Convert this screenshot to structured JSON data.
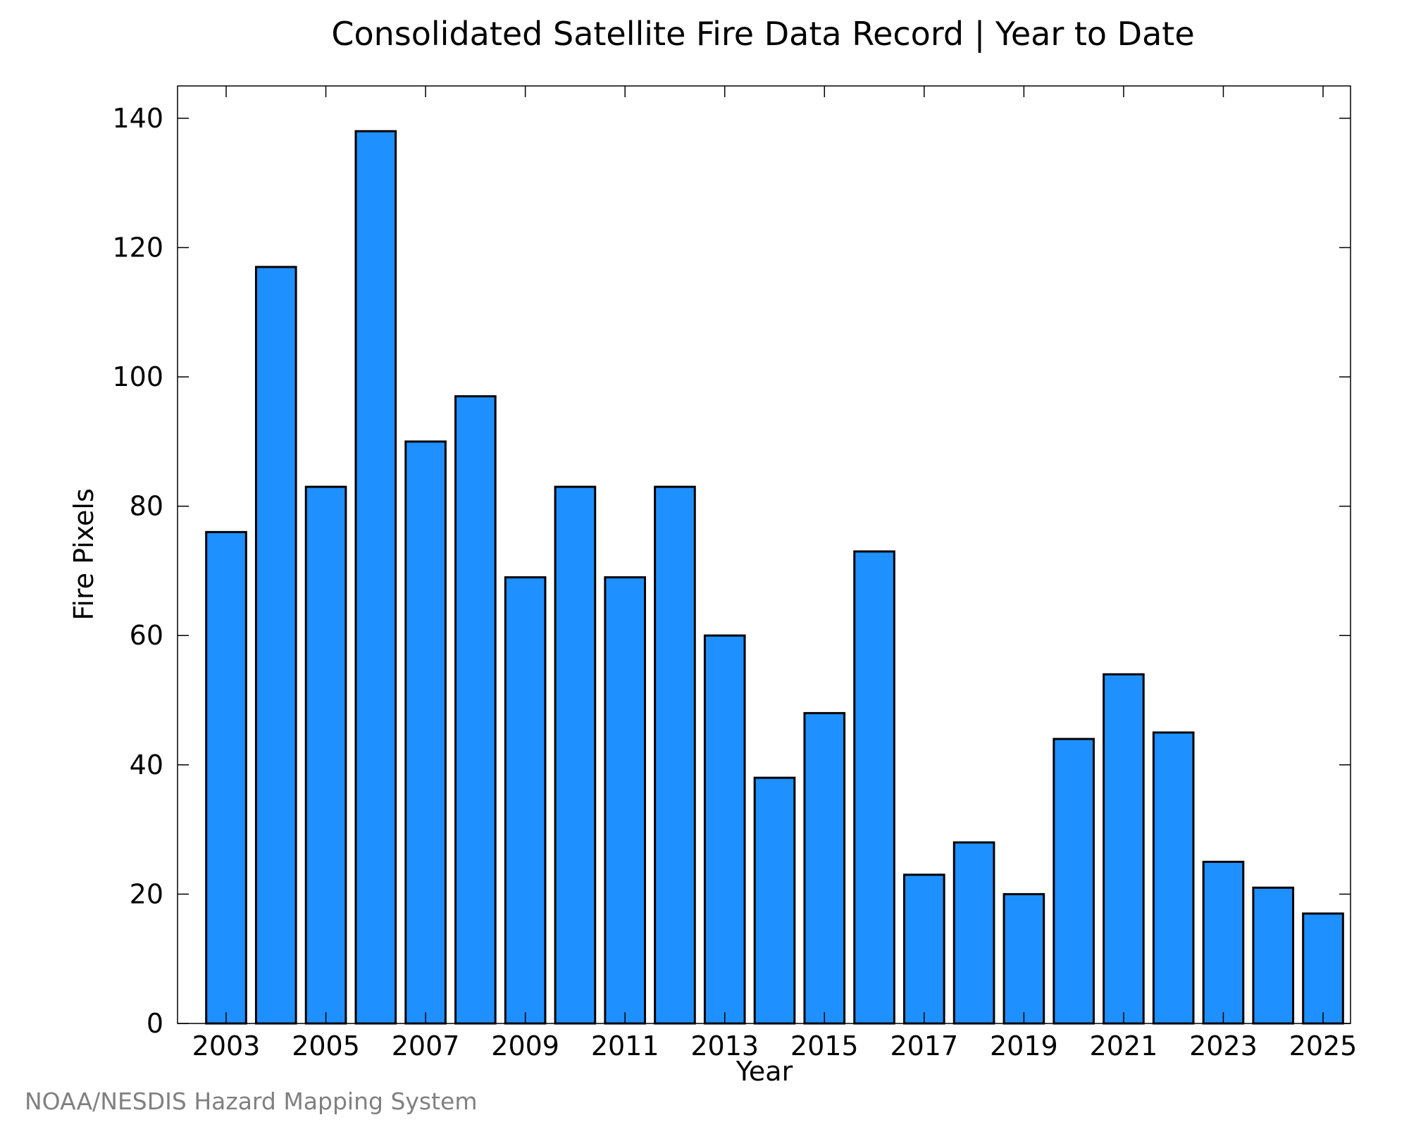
{
  "chart_data": {
    "type": "bar",
    "title": "Consolidated Satellite Fire Data Record | Year to Date",
    "xlabel": "Year",
    "ylabel": "Fire Pixels",
    "categories": [
      "2003",
      "2004",
      "2005",
      "2006",
      "2007",
      "2008",
      "2009",
      "2010",
      "2011",
      "2012",
      "2013",
      "2014",
      "2015",
      "2016",
      "2017",
      "2018",
      "2019",
      "2020",
      "2021",
      "2022",
      "2023",
      "2024",
      "2025"
    ],
    "values": [
      76,
      117,
      83,
      138,
      90,
      97,
      69,
      83,
      69,
      83,
      60,
      38,
      48,
      73,
      23,
      28,
      20,
      44,
      54,
      45,
      25,
      21,
      17
    ],
    "x_tick_labels": [
      "2003",
      "2005",
      "2007",
      "2009",
      "2011",
      "2013",
      "2015",
      "2017",
      "2019",
      "2021",
      "2023",
      "2025"
    ],
    "y_ticks": [
      0,
      20,
      40,
      60,
      80,
      100,
      120,
      140
    ],
    "ylim": [
      0,
      145
    ],
    "bar_color": "#1e90ff",
    "bar_edge_color": "#000000",
    "grid": false
  },
  "source_note": "NOAA/NESDIS Hazard Mapping System"
}
